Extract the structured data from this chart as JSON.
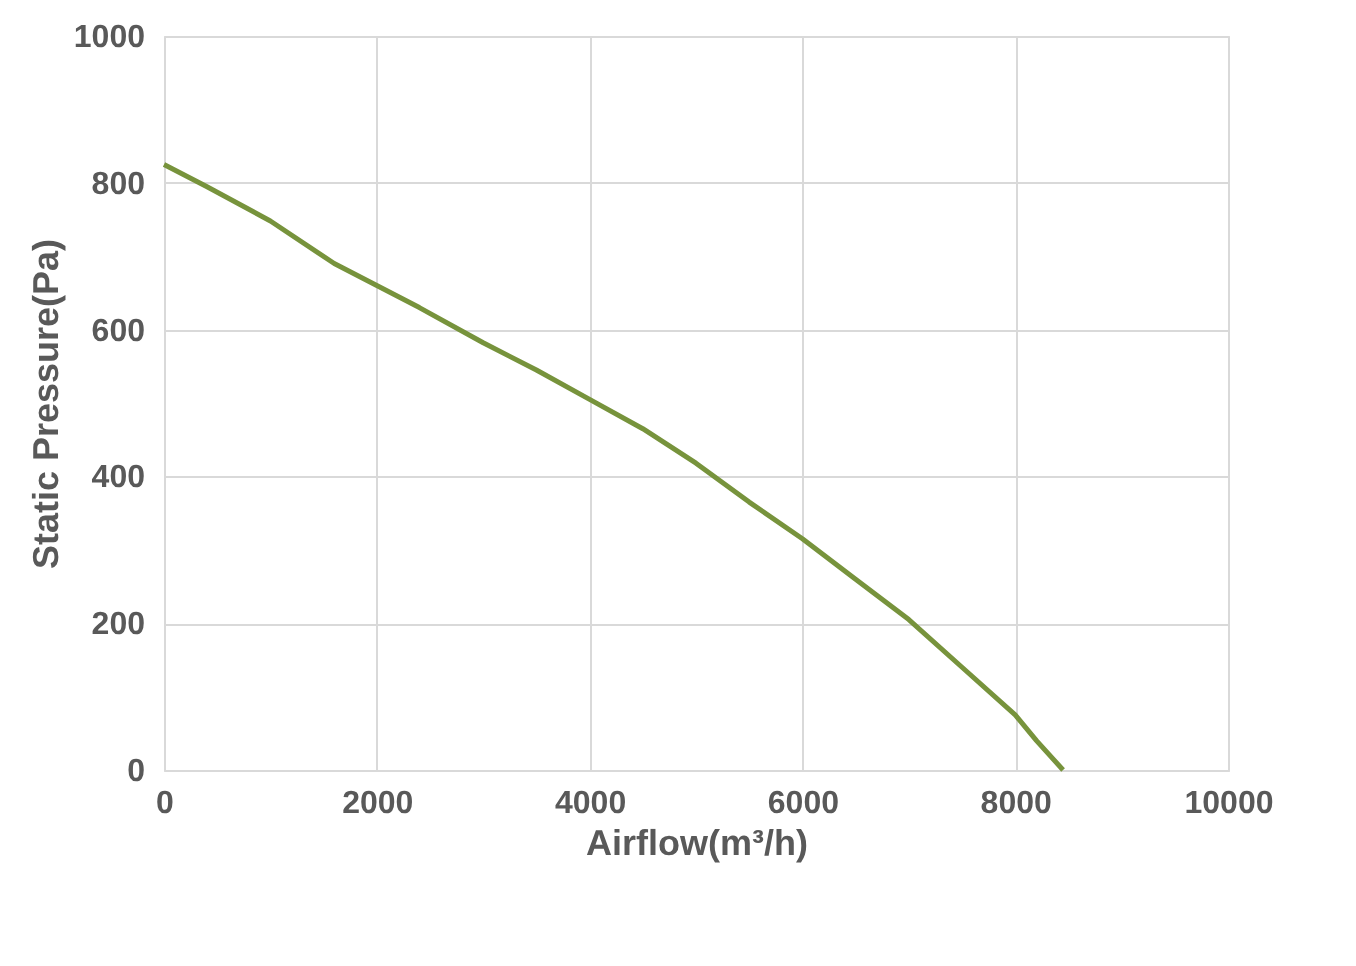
{
  "chart_data": {
    "type": "line",
    "xlabel": "Airflow(m³/h)",
    "ylabel": "Static Pressure(Pa)",
    "x": [
      0,
      400,
      1000,
      1600,
      2000,
      2400,
      3000,
      3500,
      4000,
      4500,
      5000,
      5500,
      6000,
      6500,
      7000,
      7500,
      8000,
      8200,
      8450
    ],
    "series": [
      {
        "color": "#77933c",
        "values": [
          825,
          795,
          748,
          690,
          660,
          630,
          582,
          545,
          505,
          465,
          418,
          365,
          315,
          260,
          205,
          140,
          75,
          40,
          0
        ]
      }
    ],
    "xlim": [
      0,
      10000
    ],
    "xticks": [
      0,
      2000,
      4000,
      6000,
      8000,
      10000
    ],
    "ylim": [
      0,
      1000
    ],
    "yticks": [
      0,
      200,
      400,
      600,
      800,
      1000
    ],
    "grid": true,
    "marker": "none",
    "line_style": "solid"
  }
}
